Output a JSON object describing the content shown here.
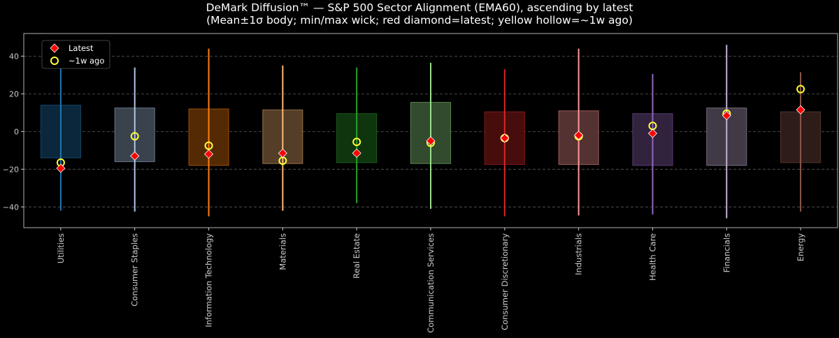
{
  "chart_data": {
    "type": "candlestick-range",
    "title": "DeMark Diffusion™ — S&P 500 Sector Alignment (EMA60), ascending by latest",
    "subtitle": "(Mean±1σ body; min/max wick; red diamond=latest; yellow hollow=~1w ago)",
    "xlabel": "",
    "ylabel": "",
    "ylim": [
      -51,
      52
    ],
    "yticks": [
      -40,
      -20,
      0,
      20,
      40
    ],
    "grid": "horizontal-dashed",
    "legend_position": "top-left",
    "legend": [
      {
        "label": "Latest",
        "marker": "diamond",
        "color": "#ff0000"
      },
      {
        "label": "~1w ago",
        "marker": "hollow-circle",
        "color": "#ffff33"
      }
    ],
    "categories": [
      "Utilities",
      "Consumer Staples",
      "Information Technology",
      "Materials",
      "Real Estate",
      "Communication Services",
      "Consumer Discretionary",
      "Industrials",
      "Health Care",
      "Financials",
      "Energy"
    ],
    "series": [
      {
        "category": "Utilities",
        "color": "#1f77b4",
        "min": -42,
        "max": 39,
        "body_low": -14,
        "body_high": 14,
        "latest": -19.5,
        "week_ago": -16.5
      },
      {
        "category": "Consumer Staples",
        "color": "#aec7e8",
        "min": -42.5,
        "max": 34,
        "body_low": -16,
        "body_high": 12.5,
        "latest": -13,
        "week_ago": -2.5
      },
      {
        "category": "Information Technology",
        "color": "#ff7f0e",
        "min": -45,
        "max": 44,
        "body_low": -18,
        "body_high": 12,
        "latest": -12,
        "week_ago": -7.5
      },
      {
        "category": "Materials",
        "color": "#ffbb78",
        "min": -42,
        "max": 35,
        "body_low": -17,
        "body_high": 11.5,
        "latest": -11.5,
        "week_ago": -15.5
      },
      {
        "category": "Real Estate",
        "color": "#2ca02c",
        "min": -38,
        "max": 34,
        "body_low": -16.5,
        "body_high": 9.5,
        "latest": -11.5,
        "week_ago": -5.5
      },
      {
        "category": "Communication Services",
        "color": "#98df8a",
        "min": -41,
        "max": 36.5,
        "body_low": -17,
        "body_high": 15.5,
        "latest": -5,
        "week_ago": -6
      },
      {
        "category": "Consumer Discretionary",
        "color": "#d62728",
        "min": -45,
        "max": 33,
        "body_low": -17.5,
        "body_high": 10.5,
        "latest": -3.5,
        "week_ago": -3.5
      },
      {
        "category": "Industrials",
        "color": "#ff9896",
        "min": -44.5,
        "max": 44,
        "body_low": -17.5,
        "body_high": 11,
        "latest": -2,
        "week_ago": -2.5
      },
      {
        "category": "Health Care",
        "color": "#9467bd",
        "min": -44,
        "max": 30.5,
        "body_low": -18,
        "body_high": 9.5,
        "latest": -1,
        "week_ago": 3
      },
      {
        "category": "Financials",
        "color": "#c5b0d5",
        "min": -46,
        "max": 46,
        "body_low": -18,
        "body_high": 12.5,
        "latest": 8.5,
        "week_ago": 9.5
      },
      {
        "category": "Energy",
        "color": "#8c564b",
        "min": -42.5,
        "max": 31.5,
        "body_low": -16.5,
        "body_high": 10.5,
        "latest": 11.5,
        "week_ago": 22.5
      }
    ]
  }
}
